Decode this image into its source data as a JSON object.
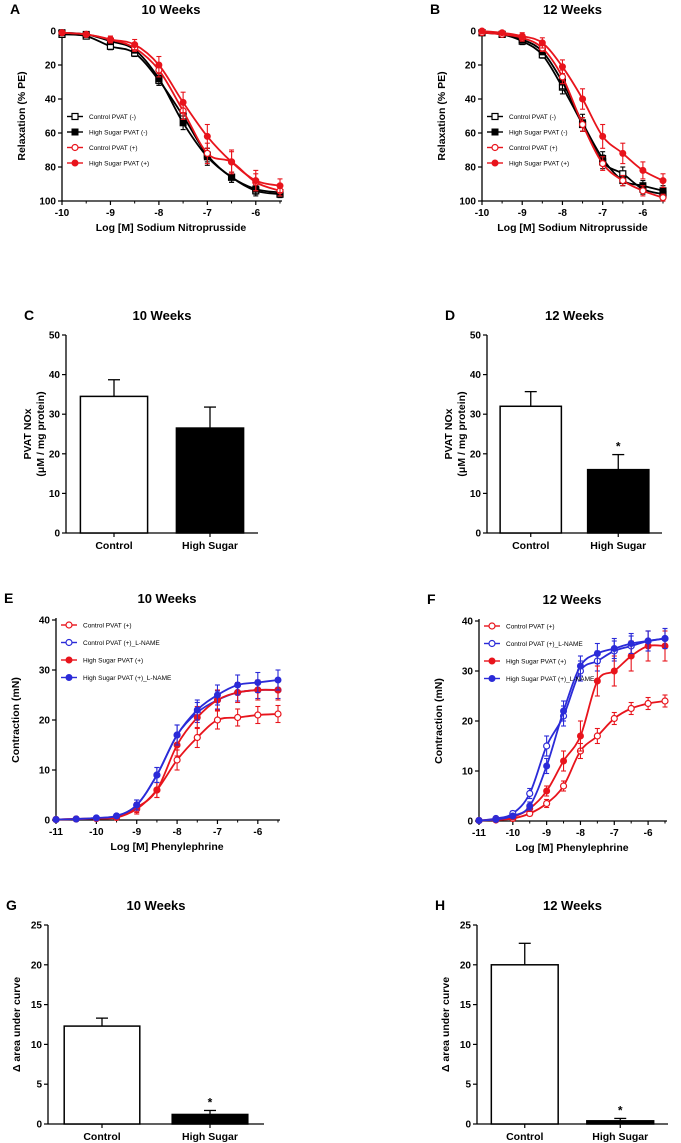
{
  "colors": {
    "black": "#000000",
    "red": "#e8141c",
    "blue": "#2b2bd8"
  },
  "chart_data": [
    {
      "panel": "A",
      "type": "line",
      "title": "10 Weeks",
      "xlabel": "Log [M] Sodium Nitroprusside",
      "ylabel": "Relaxation (% PE)",
      "xlim": [
        -10,
        -5.5
      ],
      "ylim": [
        0,
        100
      ],
      "y_inverted": true,
      "xticks": [
        -10,
        -9,
        -8,
        -7,
        -6
      ],
      "yticks": [
        0,
        20,
        40,
        60,
        80,
        100
      ],
      "x": [
        -10,
        -9.5,
        -9,
        -8.5,
        -8,
        -7.5,
        -7,
        -6.5,
        -6,
        -5.5
      ],
      "legend_position": "bottom-left",
      "series": [
        {
          "name": "Control PVAT (-)",
          "color": "black",
          "marker": "square-open",
          "values": [
            2,
            3,
            9,
            13,
            29,
            50,
            73,
            86,
            94,
            96
          ],
          "errors": [
            1,
            1,
            2,
            2,
            3,
            4,
            4,
            3,
            3,
            2
          ]
        },
        {
          "name": "High Sugar PVAT (-)",
          "color": "black",
          "marker": "square-filled",
          "values": [
            1,
            2,
            6,
            11,
            28,
            54,
            74,
            86,
            93,
            95
          ],
          "errors": [
            1,
            1,
            2,
            2,
            3,
            4,
            5,
            3,
            3,
            2
          ]
        },
        {
          "name": "Control PVAT (+)",
          "color": "red",
          "marker": "circle-open",
          "values": [
            1,
            2,
            5,
            10,
            23,
            47,
            72,
            77,
            89,
            94
          ],
          "errors": [
            1,
            1,
            2,
            2,
            4,
            5,
            6,
            6,
            5,
            3
          ]
        },
        {
          "name": "High Sugar PVAT (+)",
          "color": "red",
          "marker": "circle-filled",
          "values": [
            1,
            2,
            5,
            8,
            20,
            42,
            62,
            77,
            88,
            91
          ],
          "errors": [
            1,
            1,
            2,
            3,
            5,
            6,
            7,
            7,
            6,
            4
          ]
        }
      ]
    },
    {
      "panel": "B",
      "type": "line",
      "title": "12 Weeks",
      "xlabel": "Log [M] Sodium Nitroprusside",
      "ylabel": "Relaxation (% PE)",
      "xlim": [
        -10,
        -5.5
      ],
      "ylim": [
        0,
        100
      ],
      "y_inverted": true,
      "xticks": [
        -10,
        -9,
        -8,
        -7,
        -6
      ],
      "yticks": [
        0,
        20,
        40,
        60,
        80,
        100
      ],
      "x": [
        -10,
        -9.5,
        -9,
        -8.5,
        -8,
        -7.5,
        -7,
        -6.5,
        -6,
        -5.5
      ],
      "legend_position": "bottom-left",
      "series": [
        {
          "name": "Control PVAT (-)",
          "color": "black",
          "marker": "square-open",
          "values": [
            1,
            2,
            6,
            14,
            33,
            55,
            77,
            84,
            93,
            96
          ],
          "errors": [
            1,
            1,
            2,
            2,
            4,
            4,
            4,
            4,
            3,
            2
          ]
        },
        {
          "name": "High Sugar PVAT (-)",
          "color": "black",
          "marker": "square-filled",
          "values": [
            1,
            2,
            5,
            12,
            30,
            54,
            75,
            88,
            91,
            94
          ],
          "errors": [
            1,
            1,
            2,
            2,
            4,
            5,
            4,
            3,
            3,
            3
          ]
        },
        {
          "name": "Control PVAT (+)",
          "color": "red",
          "marker": "circle-open",
          "values": [
            1,
            2,
            4,
            10,
            27,
            55,
            78,
            88,
            94,
            98
          ],
          "errors": [
            1,
            1,
            2,
            2,
            4,
            4,
            4,
            3,
            3,
            2
          ]
        },
        {
          "name": "High Sugar PVAT (+)",
          "color": "red",
          "marker": "circle-filled",
          "values": [
            0,
            1,
            3,
            7,
            21,
            40,
            62,
            72,
            82,
            88
          ],
          "errors": [
            1,
            1,
            2,
            3,
            4,
            6,
            7,
            6,
            5,
            4
          ]
        }
      ]
    },
    {
      "panel": "C",
      "type": "bar",
      "title": "10 Weeks",
      "ylabel": "PVAT NOx",
      "ylabel2": "(μM / mg protein)",
      "ylim": [
        0,
        50
      ],
      "yticks": [
        0,
        10,
        20,
        30,
        40,
        50
      ],
      "categories": [
        "Control",
        "High Sugar"
      ],
      "values": [
        34.5,
        26.5
      ],
      "errors": [
        4.2,
        5.3
      ],
      "fills": [
        "white",
        "black"
      ],
      "significance": [
        "",
        ""
      ]
    },
    {
      "panel": "D",
      "type": "bar",
      "title": "12 Weeks",
      "ylabel": "PVAT NOx",
      "ylabel2": "(μM / mg protein)",
      "ylim": [
        0,
        50
      ],
      "yticks": [
        0,
        10,
        20,
        30,
        40,
        50
      ],
      "categories": [
        "Control",
        "High Sugar"
      ],
      "values": [
        32,
        16
      ],
      "errors": [
        3.7,
        3.8
      ],
      "fills": [
        "white",
        "black"
      ],
      "significance": [
        "",
        "*"
      ]
    },
    {
      "panel": "E",
      "type": "line",
      "title": "10 Weeks",
      "xlabel": "Log [M] Phenylephrine",
      "ylabel": "Contraction (mN)",
      "xlim": [
        -11,
        -5.5
      ],
      "ylim": [
        0,
        40
      ],
      "y_inverted": false,
      "xticks": [
        -11,
        -10,
        -9,
        -8,
        -7,
        -6
      ],
      "yticks": [
        0,
        10,
        20,
        30,
        40
      ],
      "x": [
        -11,
        -10.5,
        -10,
        -9.5,
        -9,
        -8.5,
        -8,
        -7.5,
        -7,
        -6.5,
        -6,
        -5.5
      ],
      "legend_position": "top-left",
      "series": [
        {
          "name": "Control PVAT (+)",
          "color": "red",
          "marker": "circle-open",
          "values": [
            0.1,
            0.2,
            0.3,
            0.5,
            2.2,
            6,
            12,
            16.5,
            20,
            20.5,
            21,
            21.2
          ],
          "errors": [
            0.2,
            0.2,
            0.3,
            0.4,
            1,
            1.5,
            2,
            2,
            1.8,
            1.7,
            1.7,
            1.7
          ]
        },
        {
          "name": "Control PVAT (+)_L-NAME",
          "color": "blue",
          "marker": "circle-open",
          "values": [
            0.1,
            0.2,
            0.4,
            0.8,
            3,
            9,
            17,
            21.5,
            24,
            25.5,
            26,
            26
          ],
          "errors": [
            0.2,
            0.2,
            0.3,
            0.4,
            1,
            1.5,
            2,
            2,
            1.8,
            1.7,
            1.7,
            1.7
          ]
        },
        {
          "name": "High Sugar PVAT (+)",
          "color": "red",
          "marker": "circle-filled",
          "values": [
            0.1,
            0.2,
            0.3,
            0.6,
            2.5,
            6,
            15,
            20.5,
            24,
            25.5,
            26,
            26
          ],
          "errors": [
            0.2,
            0.2,
            0.3,
            0.4,
            1,
            1.5,
            2.2,
            2.2,
            2,
            2,
            2,
            2
          ]
        },
        {
          "name": "High Sugar PVAT (+)_L-NAME",
          "color": "blue",
          "marker": "circle-filled",
          "values": [
            0.1,
            0.2,
            0.4,
            0.8,
            3,
            9,
            17,
            22,
            25,
            27,
            27.5,
            28
          ],
          "errors": [
            0.2,
            0.2,
            0.3,
            0.4,
            1,
            1.5,
            2,
            2,
            2,
            2,
            2,
            2
          ]
        }
      ]
    },
    {
      "panel": "F",
      "type": "line",
      "title": "12 Weeks",
      "xlabel": "Log [M] Phenylephrine",
      "ylabel": "Contraction (mN)",
      "xlim": [
        -11,
        -5.5
      ],
      "ylim": [
        0,
        40
      ],
      "y_inverted": false,
      "xticks": [
        -11,
        -10,
        -9,
        -8,
        -7,
        -6
      ],
      "yticks": [
        0,
        10,
        20,
        30,
        40
      ],
      "x": [
        -11,
        -10.5,
        -10,
        -9.5,
        -9,
        -8.5,
        -8,
        -7.5,
        -7,
        -6.5,
        -6,
        -5.5
      ],
      "legend_position": "top-left",
      "series": [
        {
          "name": "Control PVAT (+)",
          "color": "red",
          "marker": "circle-open",
          "values": [
            0.1,
            0.2,
            0.5,
            1.5,
            3.5,
            7,
            14,
            17,
            20.5,
            22.5,
            23.5,
            24
          ],
          "errors": [
            0.2,
            0.2,
            0.3,
            0.5,
            0.8,
            1,
            1.5,
            1.5,
            1.2,
            1.2,
            1.2,
            1.2
          ]
        },
        {
          "name": "Control PVAT (+)_L-NAME",
          "color": "blue",
          "marker": "circle-open",
          "values": [
            0.1,
            0.5,
            1.5,
            5.5,
            15,
            21,
            30,
            32,
            34,
            35,
            36,
            36.5
          ],
          "errors": [
            0.2,
            0.3,
            0.5,
            1,
            2,
            2,
            2,
            2,
            2,
            2,
            2,
            2
          ]
        },
        {
          "name": "High Sugar PVAT (+)",
          "color": "red",
          "marker": "circle-filled",
          "values": [
            0.1,
            0.3,
            0.8,
            2.5,
            6,
            12,
            17,
            28,
            30,
            33,
            35,
            35
          ],
          "errors": [
            0.2,
            0.2,
            0.4,
            0.6,
            1,
            2,
            3,
            3,
            3,
            3,
            3,
            3
          ]
        },
        {
          "name": "High Sugar PVAT (+)_L-NAME",
          "color": "blue",
          "marker": "circle-filled",
          "values": [
            0.1,
            0.3,
            1,
            3,
            11,
            22,
            31,
            33.5,
            34.5,
            35.5,
            36,
            36.5
          ],
          "errors": [
            0.2,
            0.2,
            0.4,
            0.8,
            1.5,
            2,
            2,
            2,
            2,
            2,
            2,
            2
          ]
        }
      ]
    },
    {
      "panel": "G",
      "type": "bar",
      "title": "10 Weeks",
      "ylabel": "Δ  area under curve",
      "ylabel2": "",
      "ylim": [
        0,
        25
      ],
      "yticks": [
        0,
        5,
        10,
        15,
        20,
        25
      ],
      "categories": [
        "Control",
        "High Sugar"
      ],
      "values": [
        12.3,
        1.2
      ],
      "errors": [
        1,
        0.5
      ],
      "fills": [
        "white",
        "black"
      ],
      "significance": [
        "",
        "*"
      ]
    },
    {
      "panel": "H",
      "type": "bar",
      "title": "12 Weeks",
      "ylabel": "Δ  area under curve",
      "ylabel2": "",
      "ylim": [
        0,
        25
      ],
      "yticks": [
        0,
        5,
        10,
        15,
        20,
        25
      ],
      "categories": [
        "Control",
        "High Sugar"
      ],
      "values": [
        20,
        0.4
      ],
      "errors": [
        2.7,
        0.3
      ],
      "fills": [
        "white",
        "black"
      ],
      "significance": [
        "",
        "*"
      ]
    }
  ]
}
